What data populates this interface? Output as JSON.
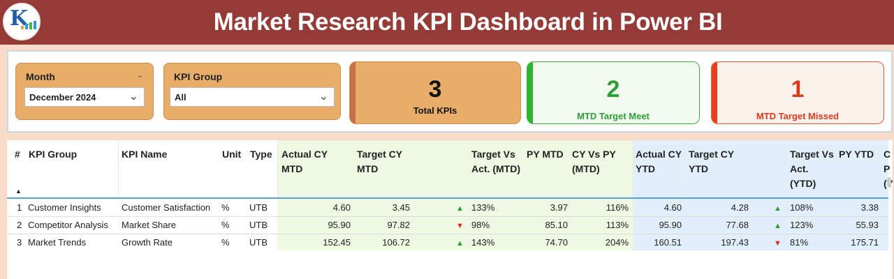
{
  "header": {
    "title": "Market Research KPI Dashboard in Power BI",
    "logo_icon": "kpi-logo-icon"
  },
  "filters": {
    "month": {
      "label": "Month",
      "value": "December 2024"
    },
    "kpi_group": {
      "label": "KPI Group",
      "value": "All"
    }
  },
  "cards": {
    "total": {
      "value": "3",
      "label": "Total KPIs"
    },
    "met": {
      "value": "2",
      "label": "MTD Target Meet"
    },
    "missed": {
      "value": "1",
      "label": "MTD Target Missed"
    }
  },
  "table": {
    "headers": {
      "num": "#",
      "group": "KPI Group",
      "name": "KPI Name",
      "unit": "Unit",
      "type": "Type",
      "actual_mtd": "Actual CY MTD",
      "target_mtd": "Target CY MTD",
      "tva_mtd": "Target Vs Act. (MTD)",
      "py_mtd": "PY MTD",
      "cyvspy_mtd": "CY Vs PY (MTD)",
      "actual_ytd": "Actual CY YTD",
      "target_ytd": "Target CY YTD",
      "tva_ytd": "Target Vs Act. (YTD)",
      "py_ytd": "PY YTD",
      "cut": "C P (Y"
    },
    "rows": [
      {
        "num": "1",
        "group": "Customer Insights",
        "name": "Customer Satisfaction",
        "unit": "%",
        "type": "UTB",
        "actual_mtd": "4.60",
        "target_mtd": "3.45",
        "mtd_status": "up",
        "tva_mtd": "133%",
        "py_mtd": "3.97",
        "cyvspy_mtd": "116%",
        "actual_ytd": "4.60",
        "target_ytd": "4.28",
        "ytd_status": "up",
        "tva_ytd": "108%",
        "py_ytd": "3.38"
      },
      {
        "num": "2",
        "group": "Competitor Analysis",
        "name": "Market Share",
        "unit": "%",
        "type": "UTB",
        "actual_mtd": "95.90",
        "target_mtd": "97.82",
        "mtd_status": "down",
        "tva_mtd": "98%",
        "py_mtd": "85.10",
        "cyvspy_mtd": "113%",
        "actual_ytd": "95.90",
        "target_ytd": "77.68",
        "ytd_status": "up",
        "tva_ytd": "123%",
        "py_ytd": "55.93"
      },
      {
        "num": "3",
        "group": "Market Trends",
        "name": "Growth Rate",
        "unit": "%",
        "type": "UTB",
        "actual_mtd": "152.45",
        "target_mtd": "106.72",
        "mtd_status": "up",
        "tva_mtd": "143%",
        "py_mtd": "74.70",
        "cyvspy_mtd": "204%",
        "actual_ytd": "160.51",
        "target_ytd": "197.43",
        "ytd_status": "down",
        "tva_ytd": "81%",
        "py_ytd": "175.71"
      }
    ]
  },
  "colors": {
    "header_bg": "#943a37",
    "page_bg": "#f6dcc8",
    "orange": "#e8ad69",
    "green": "#2d9e35",
    "red": "#d93a1c"
  }
}
